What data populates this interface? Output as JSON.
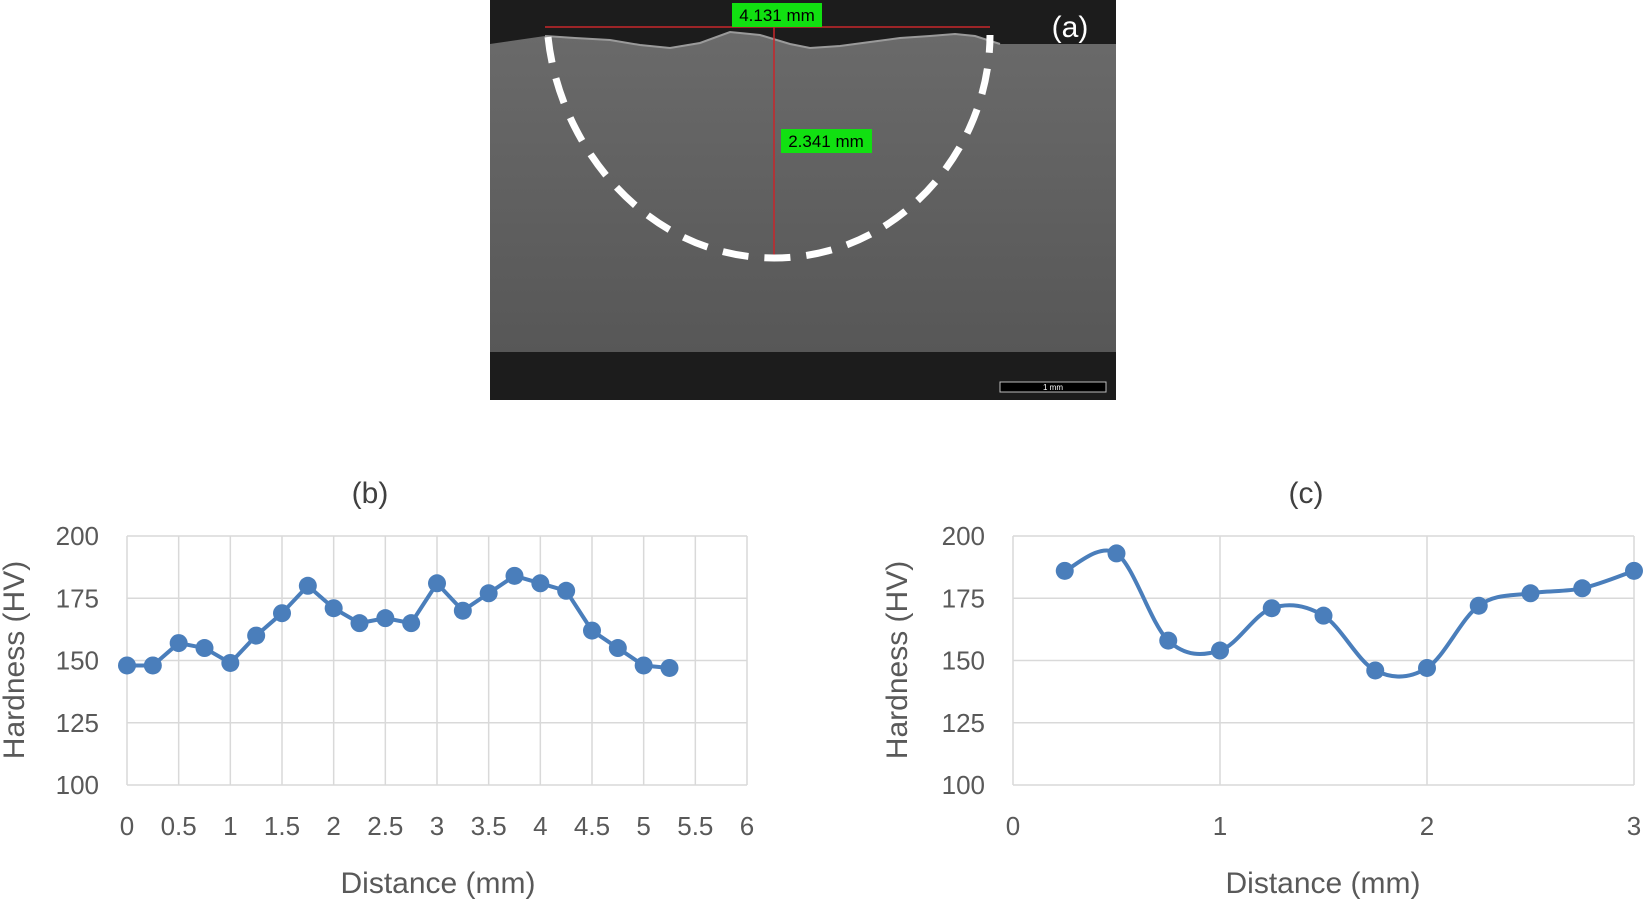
{
  "micrograph": {
    "panel_label": "(a)",
    "width_measurement": "4.131 mm",
    "depth_measurement": "2.341 mm",
    "scale_bar_label": "1 mm",
    "colors": {
      "background_dark": "#1c1c1c",
      "specimen": "#5d5d5d",
      "label_bg": "#11e011",
      "measure_line": "#c8262b",
      "dashed_outline": "#ffffff"
    }
  },
  "chart_data": [
    {
      "panel": "(b)",
      "type": "line",
      "smooth": false,
      "title": "(b)",
      "xlabel": "Distance (mm)",
      "ylabel": "Hardness (HV)",
      "xlim": [
        0,
        6
      ],
      "ylim": [
        100,
        200
      ],
      "x_ticks": [
        "0",
        "0.5",
        "1",
        "1.5",
        "2",
        "2.5",
        "3",
        "3.5",
        "4",
        "4.5",
        "5",
        "5.5",
        "6"
      ],
      "y_ticks": [
        "100",
        "125",
        "150",
        "175",
        "200"
      ],
      "grid": true,
      "series": [
        {
          "color": "#4a7ebb",
          "x": [
            0,
            0.25,
            0.5,
            0.75,
            1,
            1.25,
            1.5,
            1.75,
            2,
            2.25,
            2.5,
            2.75,
            3,
            3.25,
            3.5,
            3.75,
            4,
            4.25,
            4.5,
            4.75,
            5,
            5.25
          ],
          "y": [
            148,
            148,
            157,
            155,
            149,
            160,
            169,
            180,
            171,
            165,
            167,
            165,
            181,
            170,
            177,
            184,
            181,
            178,
            162,
            155,
            148,
            147
          ]
        }
      ]
    },
    {
      "panel": "(c)",
      "type": "line",
      "smooth": true,
      "title": "(c)",
      "xlabel": "Distance (mm)",
      "ylabel": "Hardness (HV)",
      "xlim": [
        0,
        3
      ],
      "ylim": [
        100,
        200
      ],
      "x_ticks": [
        "0",
        "1",
        "2",
        "3"
      ],
      "y_ticks": [
        "100",
        "125",
        "150",
        "175",
        "200"
      ],
      "grid": true,
      "series": [
        {
          "color": "#4a7ebb",
          "x": [
            0.25,
            0.5,
            0.75,
            1,
            1.25,
            1.5,
            1.75,
            2,
            2.25,
            2.5,
            2.75,
            3
          ],
          "y": [
            186,
            193,
            158,
            154,
            171,
            168,
            146,
            147,
            172,
            177,
            179,
            186
          ]
        }
      ]
    }
  ]
}
